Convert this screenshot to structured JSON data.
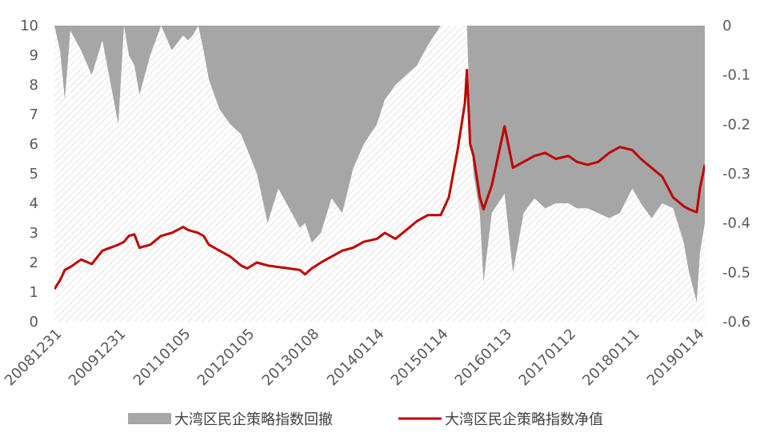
{
  "chart_data": {
    "type": "line",
    "x_tick_labels": [
      "20081231",
      "20091231",
      "20110105",
      "20120105",
      "20130108",
      "20140114",
      "20150114",
      "20160113",
      "20170112",
      "20180111",
      "20190114"
    ],
    "y_left": {
      "ticks": [
        "0",
        "1",
        "2",
        "3",
        "4",
        "5",
        "6",
        "7",
        "8",
        "9",
        "10"
      ],
      "ylim": [
        0,
        10
      ]
    },
    "y_right": {
      "ticks": [
        "0",
        "-0.1",
        "-0.2",
        "-0.3",
        "-0.4",
        "-0.5",
        "-0.6"
      ],
      "ylim": [
        -0.6,
        0
      ]
    },
    "grid": false,
    "legend_placement": "bottom",
    "series": [
      {
        "name": "大湾区民企策略指数回撤",
        "kind": "area",
        "axis": "right",
        "color": "#a6a6a6",
        "x": [
          "20081231",
          "20090201",
          "20090301",
          "20090401",
          "20090601",
          "20090801",
          "20091001",
          "20091231",
          "20100201",
          "20100301",
          "20100401",
          "20100501",
          "20100701",
          "20100901",
          "20101101",
          "20110105",
          "20110201",
          "20110301",
          "20110401",
          "20110501",
          "20110601",
          "20110801",
          "20111001",
          "20111201",
          "20120105",
          "20120301",
          "20120501",
          "20120701",
          "20120901",
          "20121101",
          "20121201",
          "20130108",
          "20130301",
          "20130501",
          "20130701",
          "20130901",
          "20131101",
          "20140114",
          "20140301",
          "20140501",
          "20140701",
          "20140901",
          "20141101",
          "20150114",
          "20150301",
          "20150420",
          "20150601",
          "20150612",
          "20150701",
          "20150720",
          "20150825",
          "20150915",
          "20151101",
          "20160113",
          "20160301",
          "20160501",
          "20160701",
          "20160901",
          "20161101",
          "20170112",
          "20170301",
          "20170501",
          "20170701",
          "20170901",
          "20171101",
          "20180111",
          "20180301",
          "20180501",
          "20180701",
          "20180901",
          "20181101",
          "20181201",
          "20190114",
          "20190201",
          "20190301"
        ],
        "values": [
          0,
          -0.05,
          -0.15,
          -0.01,
          -0.05,
          -0.1,
          -0.03,
          -0.2,
          0,
          -0.06,
          -0.08,
          -0.14,
          -0.06,
          0,
          -0.05,
          -0.02,
          -0.03,
          -0.02,
          0,
          -0.05,
          -0.11,
          -0.17,
          -0.2,
          -0.22,
          -0.25,
          -0.3,
          -0.4,
          -0.33,
          -0.37,
          -0.41,
          -0.4,
          -0.44,
          -0.42,
          -0.35,
          -0.38,
          -0.29,
          -0.24,
          -0.2,
          -0.15,
          -0.12,
          -0.1,
          -0.08,
          -0.04,
          0,
          0,
          0,
          0,
          0,
          -0.2,
          -0.3,
          -0.38,
          -0.52,
          -0.38,
          -0.34,
          -0.5,
          -0.38,
          -0.35,
          -0.37,
          -0.36,
          -0.36,
          -0.37,
          -0.37,
          -0.38,
          -0.39,
          -0.38,
          -0.33,
          -0.36,
          -0.39,
          -0.36,
          -0.37,
          -0.44,
          -0.5,
          -0.56,
          -0.46,
          -0.4
        ]
      },
      {
        "name": "大湾区民企策略指数净值",
        "kind": "line",
        "axis": "left",
        "color": "#c00000",
        "x": [
          "20081231",
          "20090201",
          "20090301",
          "20090401",
          "20090601",
          "20090801",
          "20091001",
          "20091231",
          "20100201",
          "20100301",
          "20100401",
          "20100501",
          "20100701",
          "20100901",
          "20101101",
          "20110105",
          "20110201",
          "20110301",
          "20110401",
          "20110501",
          "20110601",
          "20110801",
          "20111001",
          "20111201",
          "20120105",
          "20120301",
          "20120501",
          "20120701",
          "20120901",
          "20121101",
          "20121201",
          "20130108",
          "20130301",
          "20130501",
          "20130701",
          "20130901",
          "20131101",
          "20140114",
          "20140301",
          "20140501",
          "20140701",
          "20140901",
          "20141101",
          "20150114",
          "20150301",
          "20150420",
          "20150601",
          "20150612",
          "20150701",
          "20150720",
          "20150825",
          "20150915",
          "20151101",
          "20160113",
          "20160301",
          "20160501",
          "20160701",
          "20160901",
          "20161101",
          "20170112",
          "20170301",
          "20170501",
          "20170701",
          "20170901",
          "20171101",
          "20180111",
          "20180301",
          "20180501",
          "20180701",
          "20180901",
          "20181101",
          "20181201",
          "20190114",
          "20190201",
          "20190301"
        ],
        "values": [
          1.1,
          1.4,
          1.75,
          1.85,
          2.1,
          1.95,
          2.4,
          2.6,
          2.7,
          2.9,
          2.95,
          2.5,
          2.6,
          2.9,
          3.0,
          3.2,
          3.1,
          3.05,
          3.0,
          2.9,
          2.6,
          2.4,
          2.2,
          1.9,
          1.8,
          2.0,
          1.9,
          1.85,
          1.8,
          1.75,
          1.6,
          1.8,
          2.0,
          2.2,
          2.4,
          2.5,
          2.7,
          2.8,
          3.0,
          2.8,
          3.1,
          3.4,
          3.6,
          3.6,
          4.2,
          5.8,
          7.4,
          8.5,
          6.0,
          5.6,
          4.2,
          3.8,
          4.6,
          6.6,
          5.2,
          5.4,
          5.6,
          5.7,
          5.5,
          5.6,
          5.4,
          5.3,
          5.4,
          5.7,
          5.9,
          5.8,
          5.5,
          5.2,
          4.9,
          4.2,
          3.9,
          3.8,
          3.7,
          4.5,
          5.3
        ]
      }
    ]
  }
}
